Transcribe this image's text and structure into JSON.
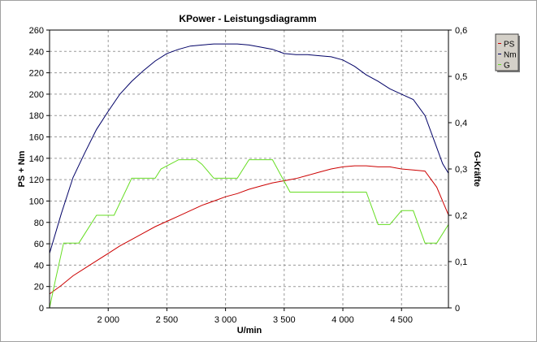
{
  "chart_data": {
    "type": "line",
    "title": "KPower - Leistungsdiagramm",
    "xlabel": "U/min",
    "ylabel": "PS + Nm",
    "y2label": "G-Kräfte",
    "xlim": [
      1500,
      4900
    ],
    "ylim": [
      0,
      260
    ],
    "y2lim": [
      0,
      0.6
    ],
    "xticks": [
      2000,
      2500,
      3000,
      3500,
      4000,
      4500
    ],
    "xtick_labels": [
      "2 000",
      "2 500",
      "3 000",
      "3 500",
      "4 000",
      "4 500"
    ],
    "yticks": [
      0,
      20,
      40,
      60,
      80,
      100,
      120,
      140,
      160,
      180,
      200,
      220,
      240,
      260
    ],
    "y2ticks": [
      0,
      0.1,
      0.2,
      0.3,
      0.4,
      0.5,
      0.6
    ],
    "y2tick_labels": [
      "0",
      "0,1",
      "0,2",
      "0,3",
      "0,4",
      "0,5",
      "0,6"
    ],
    "grid": true,
    "legend_position": "top-right",
    "series": [
      {
        "name": "PS",
        "axis": "left",
        "color": "#cc0000",
        "x": [
          1500,
          1600,
          1700,
          1800,
          1900,
          2000,
          2100,
          2200,
          2300,
          2400,
          2500,
          2600,
          2700,
          2800,
          2900,
          3000,
          3100,
          3200,
          3300,
          3400,
          3500,
          3600,
          3700,
          3800,
          3900,
          4000,
          4100,
          4200,
          4300,
          4400,
          4500,
          4600,
          4700,
          4800,
          4900
        ],
        "values": [
          13,
          21,
          30,
          37,
          44,
          51,
          58,
          64,
          70,
          76,
          81,
          86,
          91,
          96,
          100,
          104,
          107,
          111,
          114,
          117,
          119,
          121,
          124,
          127,
          130,
          132,
          133,
          133,
          132,
          132,
          130,
          129,
          128,
          113,
          87
        ]
      },
      {
        "name": "Nm",
        "axis": "left",
        "color": "#000066",
        "x": [
          1500,
          1600,
          1700,
          1800,
          1900,
          2000,
          2100,
          2200,
          2300,
          2400,
          2500,
          2600,
          2700,
          2800,
          2900,
          3000,
          3100,
          3200,
          3300,
          3400,
          3500,
          3600,
          3700,
          3800,
          3900,
          4000,
          4100,
          4200,
          4300,
          4400,
          4500,
          4600,
          4700,
          4800,
          4850,
          4900
        ],
        "values": [
          51,
          88,
          122,
          145,
          167,
          184,
          200,
          212,
          222,
          231,
          238,
          242,
          245,
          246,
          247,
          247,
          247,
          246,
          244,
          242,
          238,
          237,
          237,
          236,
          235,
          232,
          226,
          218,
          212,
          205,
          200,
          195,
          180,
          150,
          135,
          126
        ]
      },
      {
        "name": "G",
        "axis": "right",
        "color": "#66dd22",
        "x": [
          1500,
          1550,
          1620,
          1750,
          1800,
          1900,
          2050,
          2200,
          2400,
          2450,
          2600,
          2750,
          2800,
          2900,
          3100,
          3200,
          3400,
          3550,
          3600,
          4200,
          4300,
          4400,
          4500,
          4600,
          4700,
          4800,
          4900
        ],
        "values": [
          0.0,
          0.06,
          0.14,
          0.14,
          0.16,
          0.2,
          0.2,
          0.28,
          0.28,
          0.3,
          0.32,
          0.32,
          0.31,
          0.28,
          0.28,
          0.32,
          0.32,
          0.25,
          0.25,
          0.25,
          0.18,
          0.18,
          0.21,
          0.21,
          0.14,
          0.14,
          0.18
        ]
      }
    ]
  }
}
